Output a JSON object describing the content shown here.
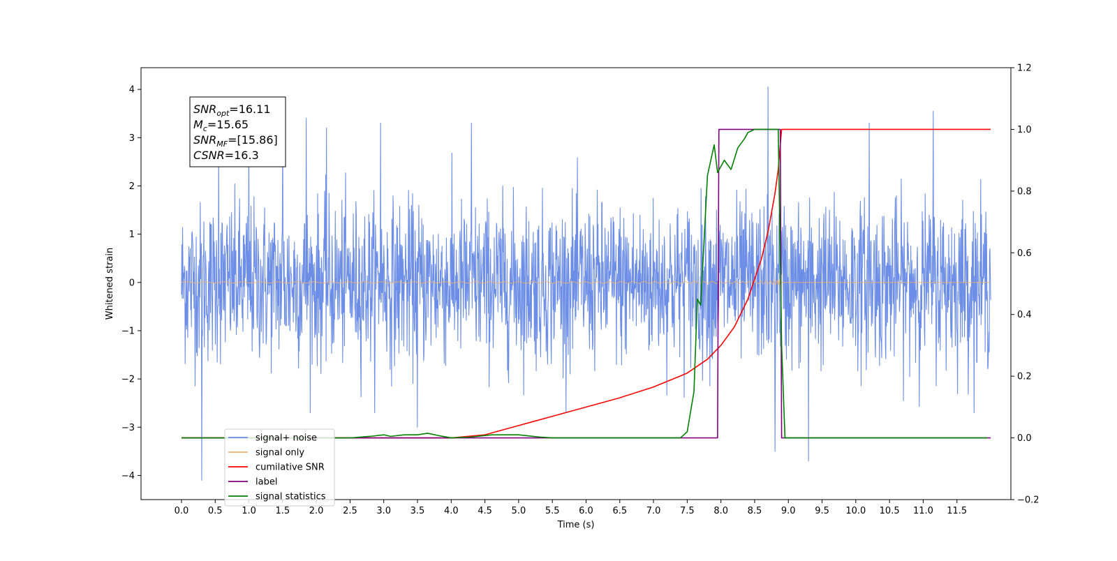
{
  "chart_data": {
    "type": "line",
    "xlabel": "Time (s)",
    "ylabel": "Whitened strain",
    "xlim": [
      -0.6,
      12.3
    ],
    "ylim": [
      -4.5,
      4.45
    ],
    "y2lim": [
      -0.2,
      1.2
    ],
    "x_ticks": [
      0.0,
      0.5,
      1.0,
      1.5,
      2.0,
      2.5,
      3.0,
      3.5,
      4.0,
      4.5,
      5.0,
      5.5,
      6.0,
      6.5,
      7.0,
      7.5,
      8.0,
      8.5,
      9.0,
      9.5,
      10.0,
      10.5,
      11.0,
      11.5
    ],
    "x_tick_labels": [
      "0.0",
      "0.5",
      "1.0",
      "1.5",
      "2.0",
      "2.5",
      "3.0",
      "3.5",
      "4.0",
      "4.5",
      "5.0",
      "5.5",
      "6.0",
      "6.5",
      "7.0",
      "7.5",
      "8.0",
      "8.5",
      "9.0",
      "9.5",
      "10.0",
      "10.5",
      "11.0",
      "11.5"
    ],
    "y_ticks": [
      -4,
      -3,
      -2,
      -1,
      0,
      1,
      2,
      3,
      4
    ],
    "y_tick_labels": [
      "−4",
      "−3",
      "−2",
      "−1",
      "0",
      "1",
      "2",
      "3",
      "4"
    ],
    "y2_ticks": [
      -0.2,
      0.0,
      0.2,
      0.4,
      0.6,
      0.8,
      1.0,
      1.2
    ],
    "y2_tick_labels": [
      "−0.2",
      "0.0",
      "0.2",
      "0.4",
      "0.6",
      "0.8",
      "1.0",
      "1.2"
    ],
    "legend_position": "lower-left",
    "grid": false,
    "annotation": {
      "lines": [
        {
          "main": "SNR",
          "sub": "opt",
          "rest": "=16.11"
        },
        {
          "main": "M",
          "sub": "c",
          "rest": "=15.65"
        },
        {
          "main": "SNR",
          "sub": "MF",
          "rest": "=[15.86]"
        },
        {
          "main": "CSNR",
          "sub": "",
          "rest": "=16.3"
        }
      ]
    },
    "series": [
      {
        "name": "signal+ noise",
        "color": "#6d8ee6",
        "axis": "left",
        "kind": "noise",
        "x_range": [
          0.0,
          12.0
        ],
        "typical_amplitude": 1.8,
        "peaks": [
          [
            0.3,
            -4.1
          ],
          [
            0.55,
            2.9
          ],
          [
            1.0,
            3.3
          ],
          [
            1.5,
            3.3
          ],
          [
            1.85,
            3.4
          ],
          [
            2.15,
            3.2
          ],
          [
            2.95,
            3.3
          ],
          [
            3.5,
            -3.0
          ],
          [
            4.3,
            3.3
          ],
          [
            8.7,
            4.05
          ],
          [
            8.8,
            -3.5
          ],
          [
            9.3,
            -3.7
          ],
          [
            10.2,
            3.3
          ],
          [
            11.15,
            3.55
          ]
        ]
      },
      {
        "name": "signal only",
        "color": "#f0b070",
        "axis": "left",
        "kind": "chirp",
        "merger_time": 8.88,
        "peak_amplitude": 2.3
      },
      {
        "name": "cumilative SNR",
        "color": "#ff0000",
        "axis": "right",
        "x": [
          0.0,
          4.0,
          4.5,
          5.0,
          5.5,
          6.0,
          6.5,
          7.0,
          7.5,
          7.8,
          8.0,
          8.2,
          8.4,
          8.6,
          8.7,
          8.8,
          8.85,
          8.88,
          8.9,
          12.0
        ],
        "y": [
          0.0,
          0.0,
          0.01,
          0.04,
          0.07,
          0.1,
          0.13,
          0.165,
          0.21,
          0.255,
          0.3,
          0.36,
          0.45,
          0.58,
          0.67,
          0.79,
          0.87,
          0.95,
          1.0,
          1.0
        ]
      },
      {
        "name": "label",
        "color": "#800080",
        "axis": "right",
        "x": [
          0.0,
          7.95,
          7.97,
          8.88,
          8.9,
          12.0
        ],
        "y": [
          0.0,
          0.0,
          1.0,
          1.0,
          0.0,
          0.0
        ]
      },
      {
        "name": "signal statistics",
        "color": "#008000",
        "axis": "right",
        "x": [
          0.0,
          2.5,
          2.8,
          3.0,
          3.1,
          3.3,
          3.5,
          3.65,
          3.8,
          4.0,
          4.3,
          4.6,
          5.0,
          5.3,
          5.5,
          6.0,
          7.4,
          7.5,
          7.6,
          7.65,
          7.7,
          7.8,
          7.9,
          7.95,
          8.05,
          8.15,
          8.25,
          8.35,
          8.4,
          8.5,
          8.8,
          8.85,
          8.9,
          8.95,
          9.0,
          11.95
        ],
        "y": [
          0.0,
          0.0,
          0.005,
          0.01,
          0.005,
          0.01,
          0.01,
          0.015,
          0.008,
          0.0,
          0.003,
          0.01,
          0.01,
          0.003,
          0.0,
          0.0,
          0.0,
          0.02,
          0.15,
          0.45,
          0.43,
          0.85,
          0.95,
          0.86,
          0.9,
          0.87,
          0.94,
          0.97,
          0.99,
          1.0,
          1.0,
          1.0,
          0.3,
          0.0,
          0.0,
          0.0
        ]
      }
    ]
  }
}
